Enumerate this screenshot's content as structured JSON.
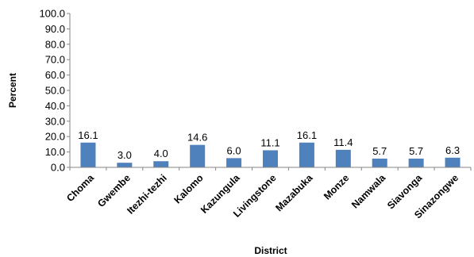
{
  "chart_data": {
    "type": "bar",
    "xlabel": "District",
    "ylabel": "Percent",
    "ylim": [
      0,
      100
    ],
    "yticks": [
      "0.0",
      "10.0",
      "20.0",
      "30.0",
      "40.0",
      "50.0",
      "60.0",
      "70.0",
      "80.0",
      "90.0",
      "100.0"
    ],
    "categories": [
      "Choma",
      "Gwembe",
      "Itezhi-tezhi",
      "Kalomo",
      "Kazungula",
      "Livingstone",
      "Mazabuka",
      "Monze",
      "Namwala",
      "Siavonga",
      "Sinazongwe"
    ],
    "values": [
      16.1,
      3.0,
      4.0,
      14.6,
      6.0,
      11.1,
      16.1,
      11.4,
      5.7,
      5.7,
      6.3
    ],
    "data_labels": [
      "16.1",
      "3.0",
      "4.0",
      "14.6",
      "6.0",
      "11.1",
      "16.1",
      "11.4",
      "5.7",
      "5.7",
      "6.3"
    ],
    "bar_color": "#4f81bd",
    "grid": false,
    "legend": "none"
  }
}
